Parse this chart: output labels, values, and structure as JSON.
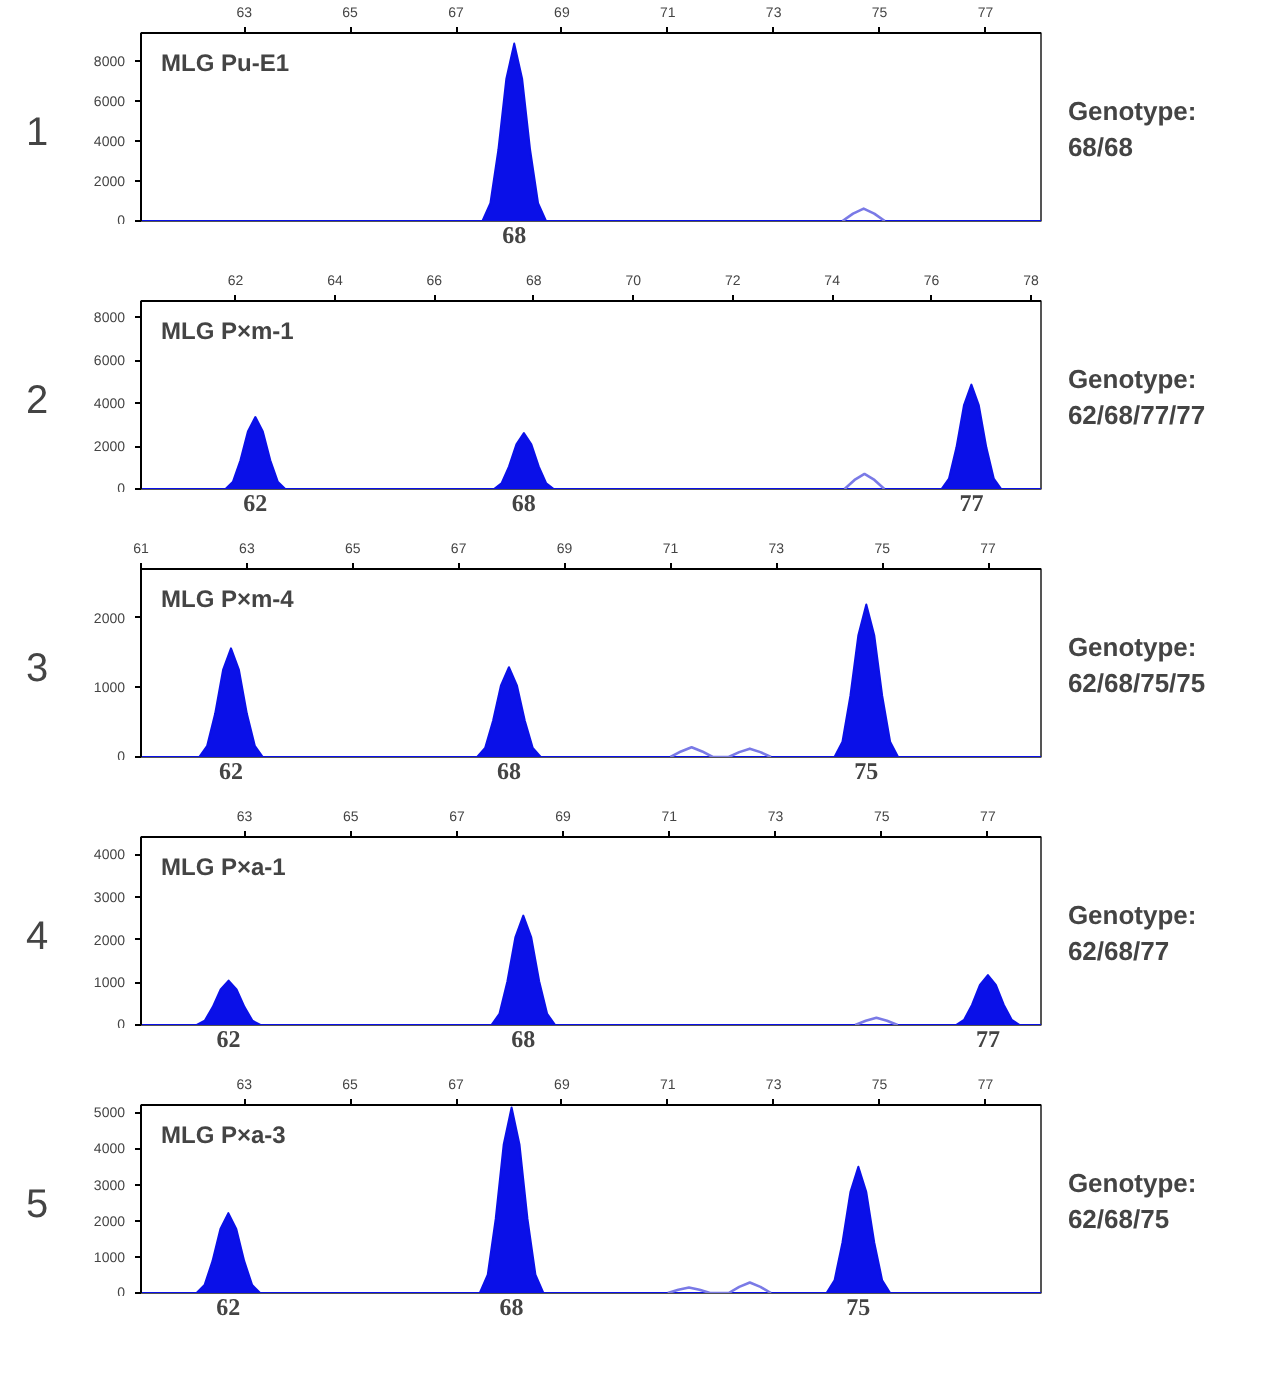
{
  "chart_data": [
    {
      "type": "area",
      "title": "MLG Pu-E1",
      "xlim": [
        61.05,
        78.05
      ],
      "xticks": [
        63,
        65,
        67,
        69,
        71,
        73,
        75,
        77
      ],
      "ylim": [
        0,
        9400
      ],
      "yticks": [
        0,
        2000,
        4000,
        6000,
        8000
      ],
      "series": [
        {
          "color": "#0a10e8",
          "x": [
            61.05,
            67.5,
            67.65,
            67.8,
            67.95,
            68.1,
            68.25,
            68.4,
            68.55,
            68.7,
            78.05
          ],
          "values": [
            0,
            0,
            890,
            3550,
            7100,
            8870,
            7100,
            3550,
            890,
            0,
            0
          ]
        },
        {
          "type": "line",
          "color": "#7a7ae6",
          "x": [
            74.3,
            74.5,
            74.7,
            74.9,
            75.1
          ],
          "values": [
            0,
            370,
            620,
            370,
            0
          ]
        }
      ],
      "annotations": [
        "1",
        "Genotype:",
        "68/68",
        {
          "text": "68",
          "x": 68.1,
          "y": 0
        }
      ]
    },
    {
      "type": "area",
      "title": "MLG P×m-1",
      "xlim": [
        60.1,
        78.2
      ],
      "xticks": [
        62,
        64,
        66,
        68,
        70,
        72,
        74,
        76,
        78
      ],
      "ylim": [
        0,
        8750
      ],
      "yticks": [
        0,
        2000,
        4000,
        6000,
        8000
      ],
      "series": [
        {
          "color": "#0a10e8",
          "x": [
            60.1,
            61.8,
            61.95,
            62.1,
            62.25,
            62.4,
            62.55,
            62.7,
            62.85,
            63.0,
            67.2,
            67.35,
            67.5,
            67.65,
            67.8,
            67.95,
            68.1,
            68.25,
            68.4,
            76.2,
            76.35,
            76.5,
            76.65,
            76.8,
            76.95,
            77.1,
            77.25,
            77.4,
            78.2
          ],
          "values": [
            0,
            0,
            340,
            1340,
            2680,
            3350,
            2680,
            1340,
            340,
            0,
            0,
            260,
            1040,
            2080,
            2600,
            2080,
            1040,
            260,
            0,
            0,
            490,
            1940,
            3890,
            4860,
            3890,
            1940,
            490,
            0,
            0
          ]
        },
        {
          "type": "line",
          "color": "#7a7ae6",
          "x": [
            74.25,
            74.45,
            74.65,
            74.85,
            75.05
          ],
          "values": [
            0,
            420,
            700,
            420,
            0
          ]
        }
      ],
      "annotations": [
        "2",
        "Genotype:",
        "62/68/77/77",
        {
          "text": "62",
          "x": 62.4,
          "y": 0
        },
        {
          "text": "68",
          "x": 67.8,
          "y": 0
        },
        {
          "text": "77",
          "x": 76.8,
          "y": 0
        }
      ]
    },
    {
      "type": "area",
      "title": "MLG P×m-4",
      "xlim": [
        61.0,
        78.0
      ],
      "xticks": [
        61,
        63,
        65,
        67,
        69,
        71,
        73,
        75,
        77
      ],
      "ylim": [
        0,
        2700
      ],
      "yticks": [
        0,
        1000,
        2000
      ],
      "series": [
        {
          "color": "#0a10e8",
          "x": [
            61.0,
            62.1,
            62.25,
            62.4,
            62.55,
            62.7,
            62.85,
            63.0,
            63.15,
            63.3,
            67.35,
            67.5,
            67.65,
            67.8,
            67.95,
            68.1,
            68.25,
            68.4,
            68.55,
            74.1,
            74.25,
            74.4,
            74.55,
            74.7,
            74.85,
            75.0,
            75.15,
            75.3,
            78.0
          ],
          "values": [
            0,
            0,
            160,
            620,
            1250,
            1560,
            1250,
            620,
            160,
            0,
            0,
            130,
            520,
            1030,
            1290,
            1030,
            520,
            130,
            0,
            0,
            220,
            880,
            1750,
            2190,
            1750,
            880,
            220,
            0,
            0
          ]
        },
        {
          "type": "line",
          "color": "#7a7ae6",
          "x": [
            71.0,
            71.2,
            71.4,
            71.6,
            71.8,
            72.1,
            72.3,
            72.5,
            72.7,
            72.9
          ],
          "values": [
            0,
            80,
            140,
            80,
            0,
            0,
            70,
            120,
            70,
            0
          ]
        }
      ],
      "annotations": [
        "3",
        "Genotype:",
        "62/68/75/75",
        {
          "text": "62",
          "x": 62.7,
          "y": 0
        },
        {
          "text": "68",
          "x": 67.95,
          "y": 0
        },
        {
          "text": "75",
          "x": 74.7,
          "y": 0
        }
      ]
    },
    {
      "type": "area",
      "title": "MLG P×a-1",
      "xlim": [
        61.05,
        78.0
      ],
      "xticks": [
        63,
        65,
        67,
        69,
        71,
        73,
        75,
        77
      ],
      "ylim": [
        0,
        4400
      ],
      "yticks": [
        0,
        1000,
        2000,
        3000,
        4000
      ],
      "series": [
        {
          "color": "#0a10e8",
          "x": [
            61.05,
            62.1,
            62.25,
            62.4,
            62.55,
            62.7,
            62.85,
            63.0,
            63.15,
            63.3,
            67.65,
            67.8,
            67.95,
            68.1,
            68.25,
            68.4,
            68.55,
            68.7,
            68.85,
            76.4,
            76.55,
            76.7,
            76.85,
            77.0,
            77.15,
            77.3,
            77.45,
            77.6,
            78.0
          ],
          "values": [
            0,
            0,
            100,
            420,
            830,
            1040,
            830,
            420,
            100,
            0,
            0,
            260,
            1020,
            2050,
            2560,
            2050,
            1020,
            260,
            0,
            0,
            120,
            470,
            940,
            1170,
            940,
            470,
            120,
            0,
            0
          ]
        },
        {
          "type": "line",
          "color": "#7a7ae6",
          "x": [
            74.5,
            74.7,
            74.9,
            75.1,
            75.3
          ],
          "values": [
            0,
            100,
            170,
            100,
            0
          ]
        }
      ],
      "annotations": [
        "4",
        "Genotype:",
        "62/68/77",
        {
          "text": "62",
          "x": 62.7,
          "y": 0
        },
        {
          "text": "68",
          "x": 68.25,
          "y": 0
        },
        {
          "text": "77",
          "x": 77.0,
          "y": 0
        }
      ]
    },
    {
      "type": "area",
      "title": "MLG P×a-3",
      "xlim": [
        61.05,
        78.05
      ],
      "xticks": [
        63,
        65,
        67,
        69,
        71,
        73,
        75,
        77
      ],
      "ylim": [
        0,
        5200
      ],
      "yticks": [
        0,
        1000,
        2000,
        3000,
        4000,
        5000
      ],
      "series": [
        {
          "color": "#0a10e8",
          "x": [
            61.05,
            62.1,
            62.25,
            62.4,
            62.55,
            62.7,
            62.85,
            63.0,
            63.15,
            63.3,
            67.45,
            67.6,
            67.75,
            67.9,
            68.05,
            68.2,
            68.35,
            68.5,
            68.65,
            74.0,
            74.15,
            74.3,
            74.45,
            74.6,
            74.75,
            74.9,
            75.05,
            75.2,
            78.05
          ],
          "values": [
            0,
            0,
            220,
            880,
            1770,
            2210,
            1770,
            880,
            220,
            0,
            0,
            510,
            2050,
            4100,
            5130,
            4100,
            2050,
            510,
            0,
            0,
            350,
            1400,
            2790,
            3490,
            2790,
            1400,
            350,
            0,
            0
          ]
        },
        {
          "type": "line",
          "color": "#7a7ae6",
          "x": [
            71.0,
            71.2,
            71.4,
            71.6,
            71.8,
            72.15,
            72.35,
            72.55,
            72.75,
            72.95
          ],
          "values": [
            0,
            90,
            150,
            90,
            0,
            0,
            170,
            290,
            170,
            0
          ]
        }
      ],
      "annotations": [
        "5",
        "Genotype:",
        "62/68/75",
        {
          "text": "62",
          "x": 62.7,
          "y": 0
        },
        {
          "text": "68",
          "x": 68.05,
          "y": 0
        },
        {
          "text": "75",
          "x": 74.6,
          "y": 0
        }
      ]
    }
  ]
}
